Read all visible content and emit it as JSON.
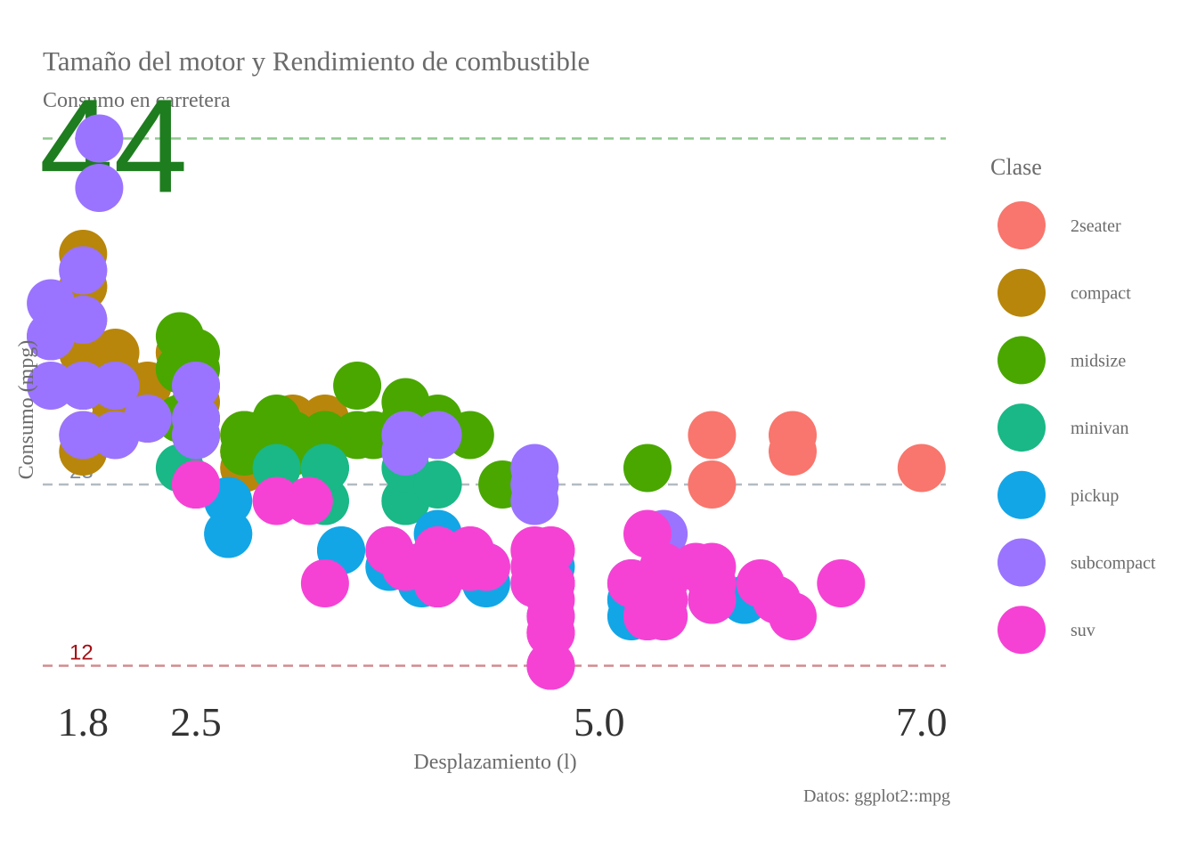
{
  "chart_data": {
    "type": "scatter",
    "title": "Tamaño del motor y Rendimiento de combustible",
    "subtitle": "Consumo en carretera",
    "xlabel": "Desplazamiento (l)",
    "ylabel": "Consumo (mpg)",
    "caption": "Datos: ggplot2::mpg",
    "xlim": [
      1.55,
      7.15
    ],
    "ylim": [
      11,
      44.3
    ],
    "x_ticks": [
      1.8,
      2.5,
      5.0,
      7.0
    ],
    "x_tick_labels": [
      "1.8",
      "2.5",
      "5.0",
      "7.0"
    ],
    "grid": false,
    "legend": {
      "title": "Clase",
      "position": "right",
      "entries": [
        {
          "name": "2seater",
          "color": "#F8766D"
        },
        {
          "name": "compact",
          "color": "#B8860B"
        },
        {
          "name": "midsize",
          "color": "#49A700"
        },
        {
          "name": "minivan",
          "color": "#19B886"
        },
        {
          "name": "pickup",
          "color": "#12A6E6"
        },
        {
          "name": "subcompact",
          "color": "#9A74FF"
        },
        {
          "name": "suv",
          "color": "#F542D4"
        }
      ]
    },
    "reference_lines": [
      {
        "y": 44,
        "label": "44",
        "color": "#1E7D1E",
        "line_color": "#8FC98F"
      },
      {
        "y": 23,
        "label": "23",
        "color": "#7A8A98",
        "line_color": "#B4BCC2"
      },
      {
        "y": 12,
        "label": "12",
        "color": "#A50F15",
        "line_color": "#D38A8E"
      }
    ],
    "series": [
      {
        "name": "2seater",
        "points": [
          [
            5.7,
            26
          ],
          [
            5.7,
            23
          ],
          [
            6.2,
            26
          ],
          [
            6.2,
            25
          ],
          [
            7.0,
            24
          ]
        ]
      },
      {
        "name": "compact",
        "points": [
          [
            1.8,
            29
          ],
          [
            1.8,
            29
          ],
          [
            2.0,
            31
          ],
          [
            2.0,
            30
          ],
          [
            2.8,
            26
          ],
          [
            2.8,
            26
          ],
          [
            3.1,
            27
          ],
          [
            1.8,
            26
          ],
          [
            1.8,
            25
          ],
          [
            2.0,
            28
          ],
          [
            2.0,
            27
          ],
          [
            2.8,
            25
          ],
          [
            2.8,
            25
          ],
          [
            3.1,
            25
          ],
          [
            2.2,
            27
          ],
          [
            2.2,
            29
          ],
          [
            2.4,
            31
          ],
          [
            2.4,
            31
          ],
          [
            3.0,
            26
          ],
          [
            3.0,
            26
          ],
          [
            3.3,
            27
          ],
          [
            1.8,
            33
          ],
          [
            1.8,
            35
          ],
          [
            1.8,
            37
          ],
          [
            1.8,
            35
          ],
          [
            1.8,
            31
          ],
          [
            2.5,
            28
          ],
          [
            2.5,
            29
          ],
          [
            2.5,
            26
          ],
          [
            2.5,
            27
          ],
          [
            2.8,
            24
          ],
          [
            2.8,
            24
          ]
        ]
      },
      {
        "name": "midsize",
        "points": [
          [
            2.8,
            26
          ],
          [
            3.1,
            26
          ],
          [
            4.2,
            26
          ],
          [
            2.4,
            30
          ],
          [
            2.4,
            27
          ],
          [
            3.1,
            26
          ],
          [
            3.5,
            29
          ],
          [
            3.6,
            26
          ],
          [
            3.3,
            26
          ],
          [
            3.3,
            26
          ],
          [
            3.0,
            26
          ],
          [
            3.8,
            28
          ],
          [
            3.8,
            26
          ],
          [
            4.0,
            26
          ],
          [
            5.3,
            24
          ],
          [
            2.5,
            30
          ],
          [
            2.5,
            31
          ],
          [
            2.5,
            26
          ],
          [
            2.5,
            27
          ],
          [
            2.9,
            26
          ],
          [
            3.1,
            25
          ],
          [
            3.5,
            26
          ],
          [
            2.4,
            30
          ],
          [
            2.4,
            32
          ],
          [
            4.4,
            23
          ],
          [
            1.8,
            29
          ],
          [
            2.0,
            29
          ],
          [
            2.8,
            25
          ],
          [
            3.0,
            27
          ],
          [
            3.8,
            27
          ],
          [
            3.8,
            26
          ],
          [
            4.0,
            27
          ]
        ]
      },
      {
        "name": "minivan",
        "points": [
          [
            2.4,
            24
          ],
          [
            3.0,
            24
          ],
          [
            3.3,
            22
          ],
          [
            3.3,
            22
          ],
          [
            3.3,
            24
          ],
          [
            3.3,
            24
          ],
          [
            3.3,
            24
          ],
          [
            3.8,
            22
          ],
          [
            3.8,
            22
          ],
          [
            3.8,
            24
          ],
          [
            4.0,
            23
          ]
        ]
      },
      {
        "name": "pickup",
        "points": [
          [
            2.7,
            20
          ],
          [
            2.7,
            20
          ],
          [
            2.7,
            22
          ],
          [
            3.4,
            19
          ],
          [
            3.4,
            19
          ],
          [
            4.0,
            18
          ],
          [
            4.0,
            17
          ],
          [
            4.0,
            20
          ],
          [
            4.7,
            18
          ],
          [
            4.7,
            17
          ],
          [
            4.7,
            17
          ],
          [
            4.7,
            17
          ],
          [
            4.7,
            17
          ],
          [
            5.2,
            16
          ],
          [
            5.2,
            16
          ],
          [
            5.7,
            17
          ],
          [
            5.9,
            16
          ],
          [
            4.7,
            15
          ],
          [
            4.7,
            12
          ],
          [
            5.2,
            17
          ],
          [
            5.2,
            15
          ],
          [
            5.7,
            16
          ],
          [
            5.9,
            16
          ],
          [
            3.9,
            18
          ],
          [
            3.9,
            17
          ],
          [
            4.3,
            18
          ],
          [
            4.3,
            17
          ],
          [
            3.7,
            19
          ],
          [
            3.7,
            18
          ],
          [
            4.6,
            17
          ],
          [
            5.4,
            15
          ],
          [
            5.4,
            16
          ],
          [
            4.0,
            17
          ]
        ]
      },
      {
        "name": "subcompact",
        "points": [
          [
            1.8,
            29
          ],
          [
            1.8,
            29
          ],
          [
            1.8,
            33
          ],
          [
            1.6,
            32
          ],
          [
            1.6,
            32
          ],
          [
            1.6,
            29
          ],
          [
            1.6,
            32
          ],
          [
            1.6,
            34
          ],
          [
            1.8,
            36
          ],
          [
            1.8,
            36
          ],
          [
            2.0,
            29
          ],
          [
            1.9,
            44
          ],
          [
            1.9,
            41
          ],
          [
            2.0,
            29
          ],
          [
            2.0,
            26
          ],
          [
            2.5,
            29
          ],
          [
            2.5,
            26
          ],
          [
            2.5,
            27
          ],
          [
            3.8,
            26
          ],
          [
            3.8,
            25
          ],
          [
            4.0,
            26
          ],
          [
            4.6,
            24
          ],
          [
            4.6,
            22
          ],
          [
            4.6,
            23
          ],
          [
            4.6,
            23
          ],
          [
            5.4,
            20
          ],
          [
            1.8,
            26
          ],
          [
            1.8,
            29
          ],
          [
            2.2,
            27
          ]
        ]
      },
      {
        "name": "suv",
        "points": [
          [
            4.2,
            19
          ],
          [
            4.7,
            15
          ],
          [
            4.7,
            12
          ],
          [
            4.7,
            17
          ],
          [
            4.7,
            17
          ],
          [
            5.7,
            17
          ],
          [
            6.1,
            16
          ],
          [
            5.3,
            15
          ],
          [
            5.3,
            16
          ],
          [
            5.7,
            17
          ],
          [
            6.5,
            17
          ],
          [
            5.3,
            20
          ],
          [
            5.3,
            15
          ],
          [
            5.7,
            17
          ],
          [
            6.0,
            17
          ],
          [
            4.0,
            19
          ],
          [
            4.0,
            17
          ],
          [
            4.0,
            17
          ],
          [
            4.7,
            17
          ],
          [
            4.7,
            19
          ],
          [
            4.7,
            19
          ],
          [
            5.2,
            17
          ],
          [
            5.6,
            18
          ],
          [
            3.3,
            17
          ],
          [
            3.8,
            18
          ],
          [
            4.0,
            19
          ],
          [
            4.0,
            19
          ],
          [
            4.6,
            17
          ],
          [
            5.4,
            17
          ],
          [
            5.4,
            16
          ],
          [
            4.7,
            14
          ],
          [
            5.7,
            18
          ],
          [
            5.4,
            15
          ],
          [
            4.2,
            18
          ],
          [
            4.0,
            18
          ],
          [
            4.3,
            18
          ],
          [
            4.7,
            17
          ],
          [
            4.7,
            17
          ],
          [
            5.7,
            16
          ],
          [
            6.2,
            15
          ],
          [
            2.5,
            23
          ],
          [
            2.5,
            23
          ],
          [
            2.5,
            23
          ],
          [
            3.0,
            22
          ],
          [
            4.6,
            19
          ],
          [
            3.2,
            22
          ],
          [
            5.4,
            17
          ],
          [
            4.0,
            17
          ],
          [
            5.4,
            18
          ],
          [
            4.7,
            16
          ],
          [
            4.7,
            14
          ],
          [
            4.7,
            12
          ],
          [
            4.7,
            14
          ],
          [
            5.4,
            16
          ],
          [
            4.2,
            19
          ],
          [
            3.7,
            19
          ],
          [
            4.6,
            18
          ]
        ]
      }
    ]
  }
}
